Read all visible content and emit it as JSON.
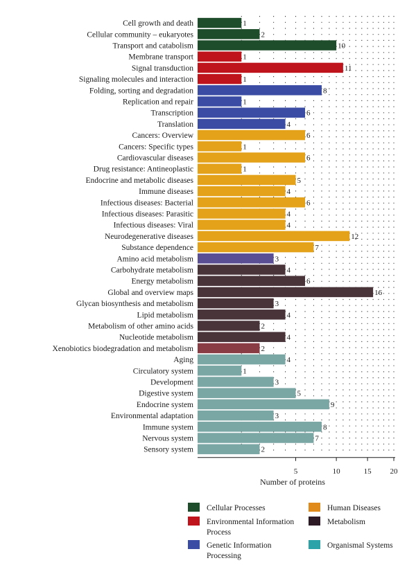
{
  "chart_data": {
    "type": "bar",
    "orientation": "horizontal",
    "title": "",
    "xlabel": "Number of proteins",
    "ylabel": "",
    "x_scale": "sqrt",
    "xlim": [
      0,
      20
    ],
    "x_ticks": [
      5,
      10,
      15,
      20
    ],
    "grid": true,
    "legend_position": "bottom",
    "groups": [
      {
        "name": "Cellular Processes",
        "color": "#1e4d2b"
      },
      {
        "name": "Environmental Information Process",
        "color": "#c0141c"
      },
      {
        "name": "Genetic Information Processing",
        "color": "#3a4ca4"
      },
      {
        "name": "Human Diseases",
        "color": "#e3a21a"
      },
      {
        "name": "Metabolism",
        "color": "#49343a"
      },
      {
        "name": "Organismal Systems",
        "color": "#7aa6a4"
      }
    ],
    "legend_swatch_colors": [
      "#1e4d2b",
      "#c0141c",
      "#3a4ca4",
      "#e08a1c",
      "#2e1a24",
      "#2ba3a8"
    ],
    "categories": [
      "Cell growth and death",
      "Cellular community – eukaryotes",
      "Transport and catabolism",
      "Membrane transport",
      "Signal transduction",
      "Signaling molecules and interaction",
      "Folding, sorting and degradation",
      "Replication and repair",
      "Transcription",
      "Translation",
      "Cancers: Overview",
      "Cancers: Specific types",
      "Cardiovascular diseases",
      "Drug resistance: Antineoplastic",
      "Endocrine and metabolic diseases",
      "Immune diseases",
      "Infectious diseases: Bacterial",
      "Infectious diseases: Parasitic",
      "Infectious diseases: Viral",
      "Neurodegenerative diseases",
      "Substance dependence",
      "Amino acid metabolism",
      "Carbohydrate metabolism",
      "Energy metabolism",
      "Global and overview maps",
      "Glycan biosynthesis and metabolism",
      "Lipid metabolism",
      "Metabolism of other amino acids",
      "Nucleotide metabolism",
      "Xenobiotics biodegradation and metabolism",
      "Aging",
      "Circulatory system",
      "Development",
      "Digestive system",
      "Endocrine system",
      "Environmental adaptation",
      "Immune system",
      "Nervous system",
      "Sensory system"
    ],
    "values": [
      1,
      2,
      10,
      1,
      11,
      1,
      8,
      1,
      6,
      4,
      6,
      1,
      6,
      1,
      5,
      4,
      6,
      4,
      4,
      12,
      7,
      3,
      4,
      6,
      16,
      3,
      4,
      2,
      4,
      2,
      4,
      1,
      3,
      5,
      9,
      3,
      8,
      7,
      2
    ],
    "bar_colors": [
      "#1e4d2b",
      "#1e4d2b",
      "#1e4d2b",
      "#c0141c",
      "#c0141c",
      "#c0141c",
      "#3a4ca4",
      "#3a4ca4",
      "#3a4ca4",
      "#3a4ca4",
      "#e3a21a",
      "#e3a21a",
      "#e3a21a",
      "#e3a21a",
      "#e3a21a",
      "#e3a21a",
      "#e3a21a",
      "#e3a21a",
      "#e3a21a",
      "#e3a21a",
      "#e3a21a",
      "#5a4e94",
      "#49343a",
      "#49343a",
      "#49343a",
      "#49343a",
      "#49343a",
      "#49343a",
      "#49343a",
      "#8a3c44",
      "#7aa6a4",
      "#7aa6a4",
      "#7aa6a4",
      "#7aa6a4",
      "#7aa6a4",
      "#7aa6a4",
      "#7aa6a4",
      "#7aa6a4",
      "#7aa6a4"
    ]
  }
}
